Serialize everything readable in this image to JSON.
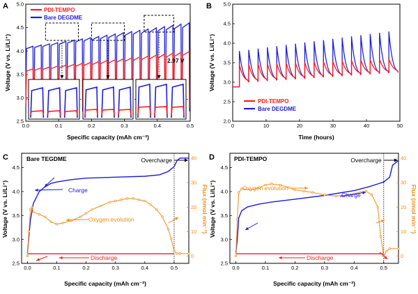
{
  "colors": {
    "red": "#ff1a1a",
    "blue": "#1c1cdc",
    "orange": "#f08c14",
    "black": "#000000"
  },
  "panels": {
    "A": {
      "label": "A"
    },
    "B": {
      "label": "B"
    },
    "C": {
      "label": "C",
      "title": "Bare TEGDME"
    },
    "D": {
      "label": "D",
      "title": "PDI-TEMPO"
    }
  },
  "chart_data": [
    {
      "panel": "A",
      "type": "line",
      "xlabel": "Specific capacity (mAh cm⁻²)",
      "ylabel": "Voltage (V vs. Li/Li⁺)",
      "xlim": [
        0,
        0.5
      ],
      "ylim": [
        2.5,
        5.0
      ],
      "xticks": [
        "0.0",
        "0.1",
        "0.2",
        "0.3",
        "0.4",
        "0.5"
      ],
      "yticks": [
        "2.5",
        "3.0",
        "3.5",
        "4.0",
        "4.5",
        "5.0"
      ],
      "legend": {
        "position": "top-left",
        "entries": [
          "PDI-TEMPO",
          "Bare DEGDME"
        ]
      },
      "annotations": {
        "threshold_label": "2.97 V",
        "threshold_value": 2.97
      },
      "series": [
        {
          "name": "PDI-TEMPO",
          "cycles": 20,
          "charge_start": 3.62,
          "charge_end": 3.99,
          "discharge": 2.8
        },
        {
          "name": "Bare DEGDME",
          "cycles": 20,
          "charge_start": 4.1,
          "charge_end": 4.6,
          "discharge": 2.72
        }
      ],
      "zoom_windows": [
        [
          0.06,
          0.16
        ],
        [
          0.2,
          0.3
        ],
        [
          0.36,
          0.45
        ]
      ]
    },
    {
      "panel": "B",
      "type": "line",
      "xlabel": "Time (hours)",
      "ylabel": "Voltage (V vs. Li/Li⁺)",
      "xlim": [
        0,
        50
      ],
      "ylim": [
        2.0,
        5.0
      ],
      "xticks": [
        "0",
        "10",
        "20",
        "30",
        "40",
        "50"
      ],
      "yticks": [
        "2.0",
        "2.5",
        "3.0",
        "3.5",
        "4.0",
        "4.5",
        "5.0"
      ],
      "legend": {
        "position": "bottom-left",
        "entries": [
          "PDI-TEMPO",
          "Bare DEGDME"
        ]
      },
      "series": [
        {
          "name": "PDI-TEMPO",
          "baseline": 2.95,
          "peak_start": 3.45,
          "peak_end": 3.6,
          "cycles": 17
        },
        {
          "name": "Bare DEGDME",
          "baseline": 2.95,
          "peak_start": 3.8,
          "peak_end": 4.3,
          "cycles": 17
        }
      ]
    },
    {
      "panel": "C",
      "type": "line",
      "xlabel": "Specific capacity (mAh cm⁻²)",
      "ylabel": "Voltage (V vs. Li/Li⁺)",
      "y2label": "Flux (nmol min⁻¹)",
      "xlim": [
        -0.02,
        0.55
      ],
      "ylim": [
        2.5,
        4.8
      ],
      "y2lim": [
        -3,
        42
      ],
      "xticks": [
        "0.0",
        "0.1",
        "0.2",
        "0.3",
        "0.4",
        "0.5"
      ],
      "yticks": [
        "2.5",
        "3.0",
        "3.5",
        "4.0",
        "4.5"
      ],
      "y2ticks": [
        "0",
        "10",
        "20",
        "30",
        "40"
      ],
      "annotations": {
        "charge": "Charge",
        "discharge": "Discharge",
        "oxygen": "Oxygen evolution",
        "overcharge": "Overcharge",
        "cutoff_x": 0.5
      },
      "charge": {
        "x": [
          0,
          0.01,
          0.02,
          0.04,
          0.06,
          0.08,
          0.1,
          0.15,
          0.2,
          0.3,
          0.4,
          0.45,
          0.48,
          0.5,
          0.51,
          0.52,
          0.55
        ],
        "y": [
          2.72,
          3.4,
          3.75,
          4.0,
          4.1,
          4.17,
          4.2,
          4.25,
          4.28,
          4.3,
          4.32,
          4.35,
          4.42,
          4.52,
          4.65,
          4.7,
          4.7
        ]
      },
      "discharge": {
        "x": [
          0,
          0.5
        ],
        "y": [
          2.7,
          2.7
        ]
      },
      "flux": {
        "x": [
          0,
          0.005,
          0.01,
          0.015,
          0.02,
          0.04,
          0.06,
          0.08,
          0.1,
          0.12,
          0.15,
          0.18,
          0.2,
          0.22,
          0.25,
          0.28,
          0.3,
          0.32,
          0.34,
          0.36,
          0.38,
          0.4,
          0.42,
          0.44,
          0.46,
          0.48,
          0.49,
          0.5,
          0.51,
          0.52,
          0.55
        ],
        "y": [
          0,
          10,
          19,
          20,
          18,
          17,
          16,
          14,
          13,
          13.5,
          14.5,
          16,
          17.5,
          19,
          20.5,
          22,
          22.5,
          23,
          23.5,
          23.5,
          23,
          22.5,
          21,
          19,
          16,
          11,
          7,
          2,
          1,
          1,
          1
        ]
      }
    },
    {
      "panel": "D",
      "type": "line",
      "xlabel": "Specific capacity (mAh cm⁻²)",
      "ylabel": "Voltage (V vs. Li/Li⁺)",
      "y2label": "Flux (nmol min⁻¹)",
      "xlim": [
        -0.02,
        0.55
      ],
      "ylim": [
        2.5,
        4.8
      ],
      "y2lim": [
        -3,
        42
      ],
      "xticks": [
        "0.0",
        "0.1",
        "0.2",
        "0.3",
        "0.4",
        "0.5"
      ],
      "yticks": [
        "2.5",
        "3.0",
        "3.5",
        "4.0",
        "4.5"
      ],
      "y2ticks": [
        "0",
        "10",
        "20",
        "30",
        "40"
      ],
      "annotations": {
        "charge": "Charge",
        "discharge": "Discharge",
        "oxygen": "Oxygen evolution",
        "overcharge": "Overcharge",
        "cutoff_x": 0.5
      },
      "charge": {
        "x": [
          0,
          0.005,
          0.01,
          0.02,
          0.04,
          0.08,
          0.12,
          0.2,
          0.3,
          0.4,
          0.45,
          0.48,
          0.5,
          0.52,
          0.53,
          0.55
        ],
        "y": [
          2.72,
          3.0,
          3.45,
          3.6,
          3.68,
          3.74,
          3.78,
          3.84,
          3.92,
          4.02,
          4.1,
          4.16,
          4.2,
          4.3,
          4.55,
          4.65
        ]
      },
      "discharge": {
        "x": [
          0,
          0.5
        ],
        "y": [
          2.7,
          2.7
        ]
      },
      "flux": {
        "x": [
          0,
          0.005,
          0.01,
          0.02,
          0.05,
          0.08,
          0.1,
          0.12,
          0.15,
          0.18,
          0.2,
          0.23,
          0.26,
          0.3,
          0.34,
          0.38,
          0.42,
          0.44,
          0.46,
          0.48,
          0.49,
          0.5,
          0.51,
          0.52,
          0.55
        ],
        "y": [
          0,
          15,
          26,
          27.5,
          27,
          28,
          29,
          29.5,
          29,
          28,
          27,
          26.5,
          26,
          25,
          24.5,
          25,
          26,
          26.5,
          25,
          20,
          8,
          0,
          2,
          3,
          3
        ]
      }
    }
  ]
}
